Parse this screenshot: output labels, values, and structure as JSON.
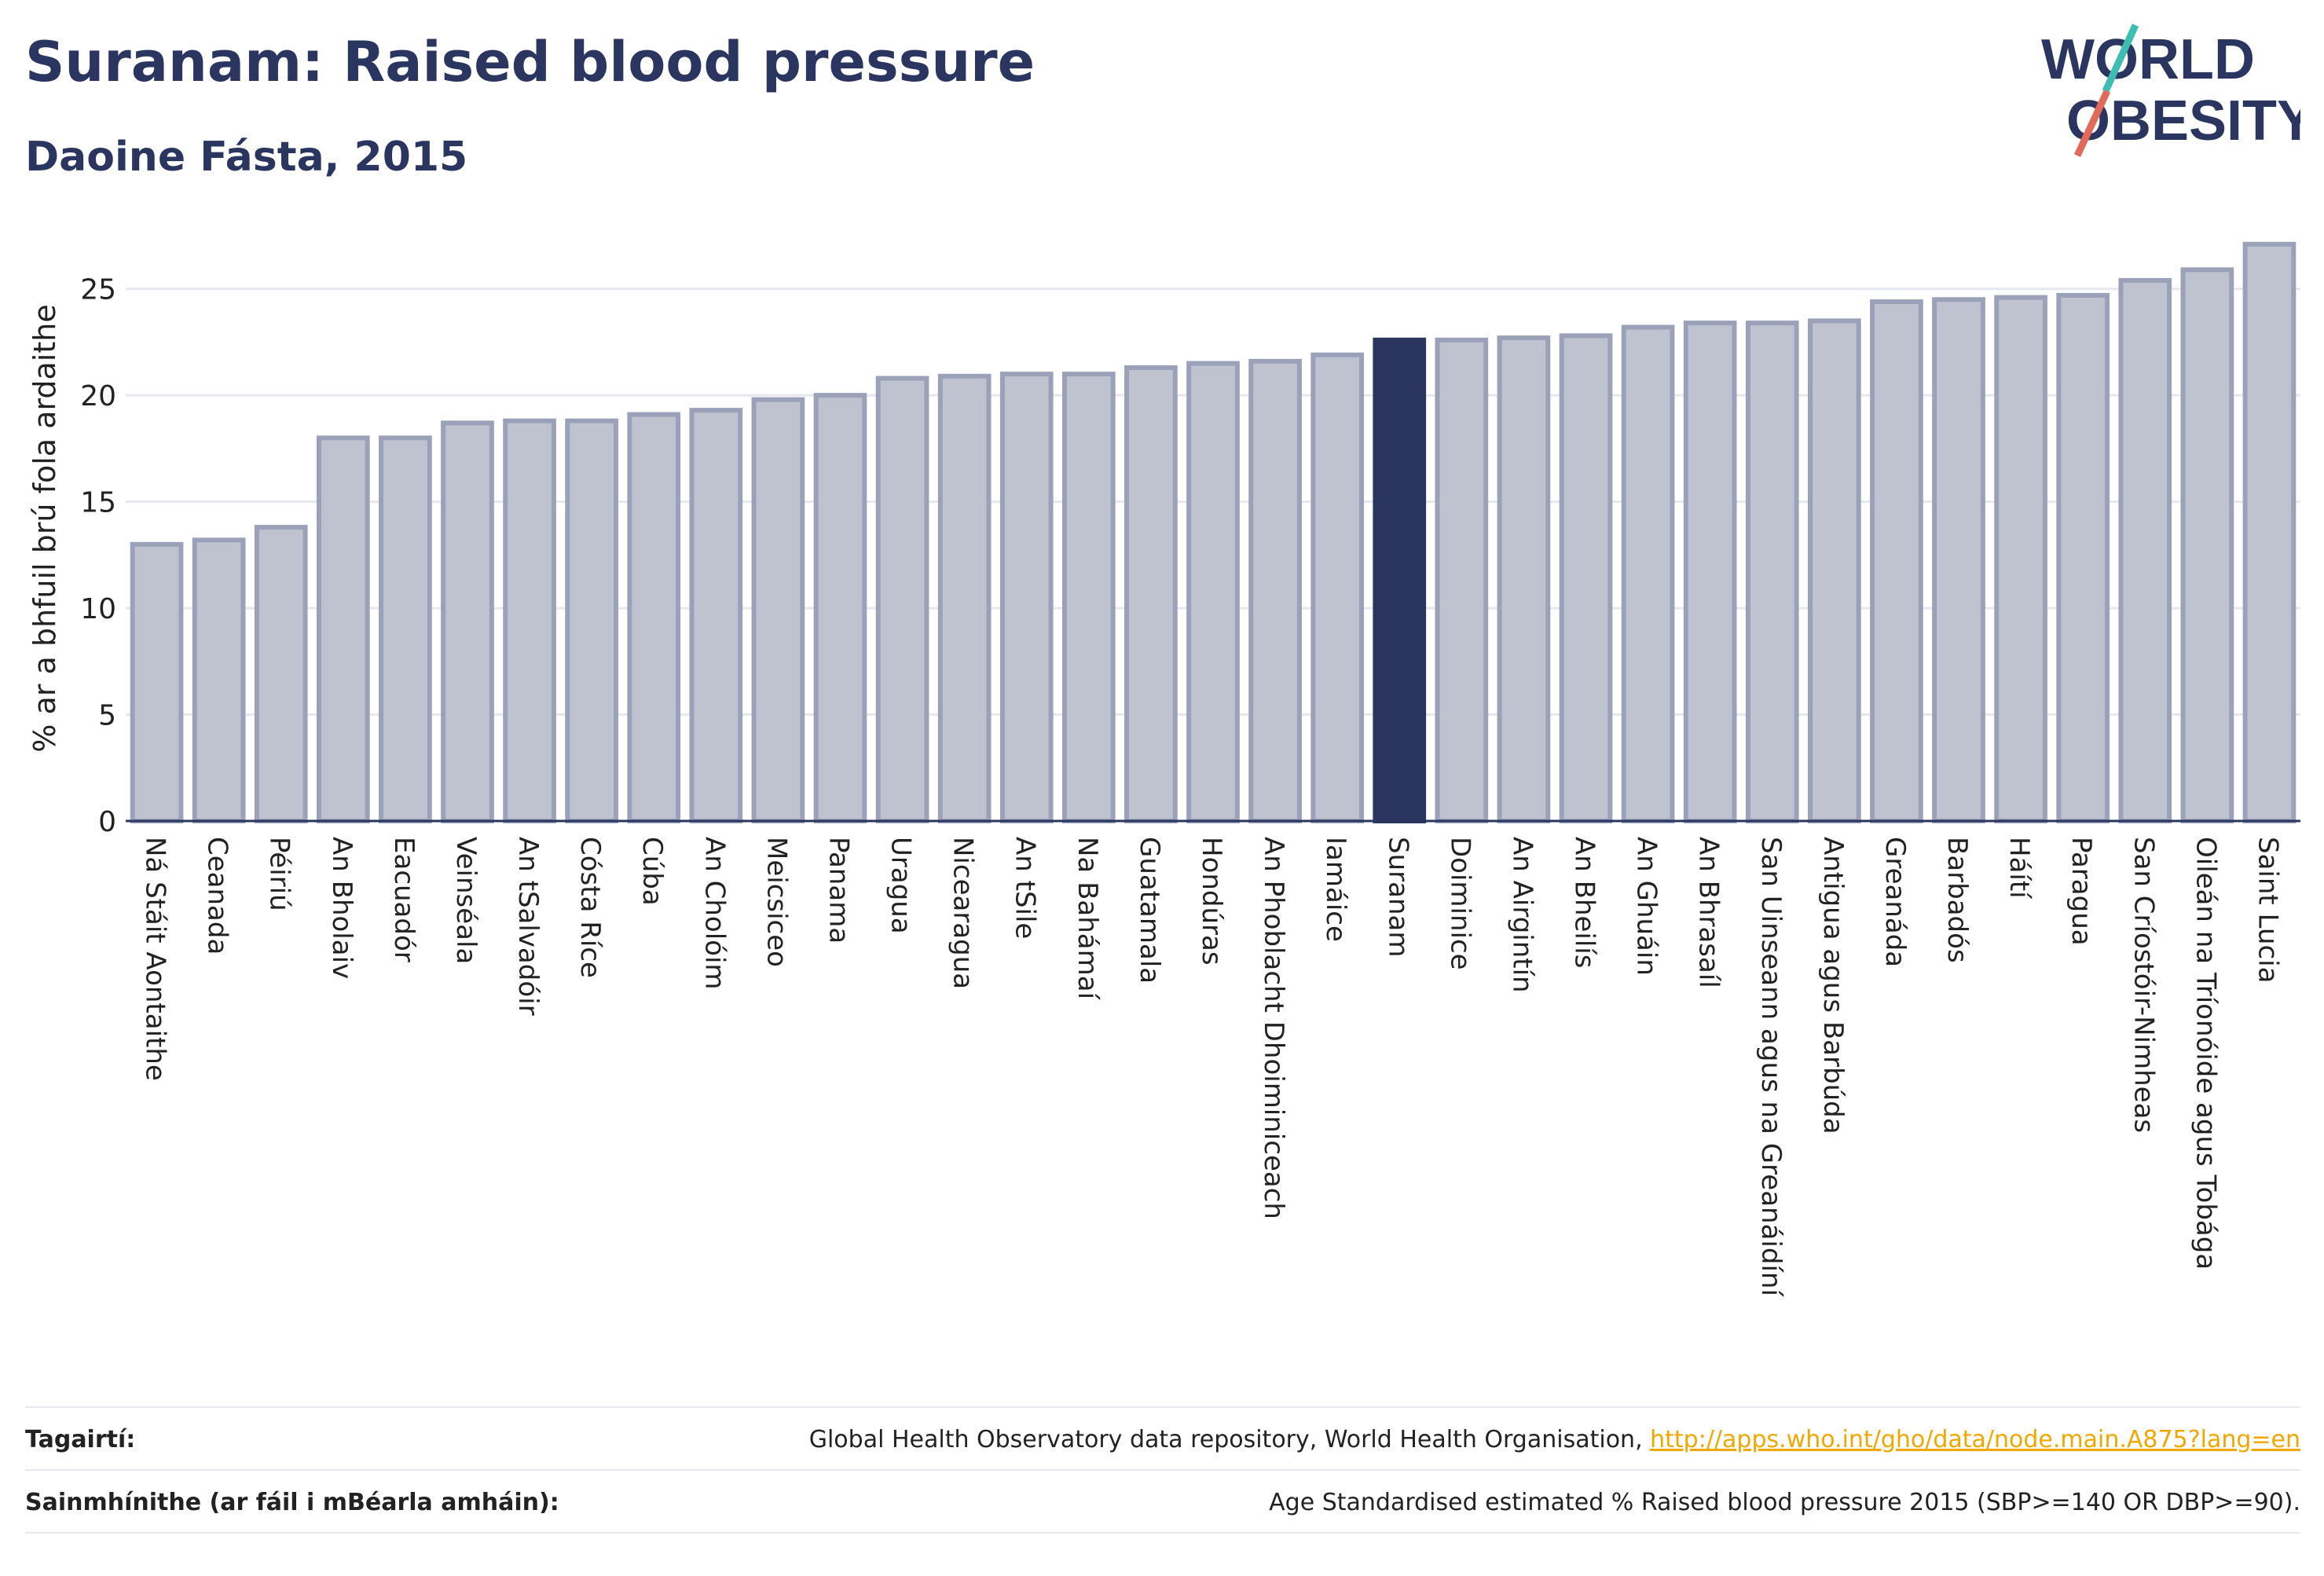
{
  "title": "Suranam: Raised blood pressure",
  "subtitle": "Daoine Fásta, 2015",
  "logo": {
    "line1": "WORLD",
    "line2": "OBESITY",
    "accent_teal": "#3dbdb3",
    "accent_red": "#e26a5a"
  },
  "colors": {
    "bar": "#bfc3d0",
    "bar_border": "#9aa1b8",
    "highlight": "#2a3560",
    "grid": "#e6e8ef",
    "text": "#2a3560"
  },
  "chart_data": {
    "type": "bar",
    "title": "Suranam: Raised blood pressure",
    "subtitle": "Daoine Fásta, 2015",
    "xlabel": "",
    "ylabel": "% ar a bhfuil brú fola ardaithe",
    "ylim": [
      0,
      27.5
    ],
    "yticks": [
      0,
      5,
      10,
      15,
      20,
      25
    ],
    "grid": true,
    "highlight": "Suranam",
    "categories": [
      "Ná Stáit Aontaithe",
      "Ceanada",
      "Péiriú",
      "An Bholaiv",
      "Eacuadór",
      "Veinséala",
      "An tSalvadóir",
      "Cósta Ríce",
      "Cúba",
      "An Cholóim",
      "Meicsiceo",
      "Panama",
      "Uragua",
      "Nicearagua",
      "An tSile",
      "Na Bahámaí",
      "Guatamala",
      "Hondúras",
      "An Phoblacht Dhoiminiceach",
      "Iamáice",
      "Suranam",
      "Doiminice",
      "An Airgintín",
      "An Bheilís",
      "An Ghuáin",
      "An Bhrasaíl",
      "San Uinseann agus na Greanáidíní",
      "Antigua agus Barbúda",
      "Greanáda",
      "Barbadós",
      "Háítí",
      "Paragua",
      "San Críostóir-Nimheas",
      "Oileán na Tríonóide agus Tobága",
      "Saint Lucia"
    ],
    "values": [
      13.0,
      13.2,
      13.8,
      18.0,
      18.0,
      18.7,
      18.8,
      18.8,
      19.1,
      19.3,
      19.8,
      20.0,
      20.8,
      20.9,
      21.0,
      21.0,
      21.3,
      21.5,
      21.6,
      21.9,
      22.6,
      22.6,
      22.7,
      22.8,
      23.2,
      23.4,
      23.4,
      23.5,
      24.4,
      24.5,
      24.6,
      24.7,
      25.4,
      25.9,
      27.1
    ]
  },
  "footer": {
    "references_label": "Tagairtí:",
    "references_text": "Global Health Observatory data repository, World Health Organisation, ",
    "references_link": "http://apps.who.int/gho/data/node.main.A875?lang=en",
    "definitions_label": "Sainmhínithe (ar fáil i mBéarla amháin):",
    "definitions_text": "Age Standardised estimated % Raised blood pressure 2015 (SBP>=140 OR DBP>=90)."
  }
}
